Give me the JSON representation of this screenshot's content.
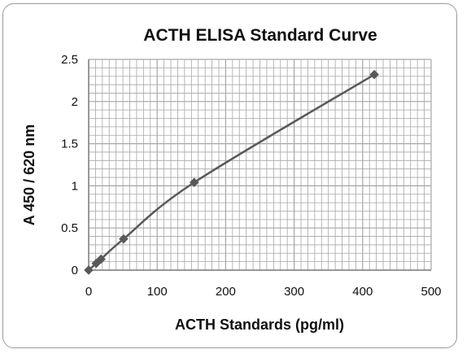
{
  "chart_data": {
    "type": "scatter",
    "title": "ACTH ELISA Standard Curve",
    "xlabel": "ACTH Standards (pg/ml)",
    "ylabel": "A 450 / 620 nm",
    "xlim": [
      0,
      500
    ],
    "ylim": [
      0,
      2.5
    ],
    "x_ticks": [
      "0",
      "100",
      "200",
      "300",
      "400",
      "500"
    ],
    "y_ticks": [
      "0",
      "0.5",
      "1",
      "1.5",
      "2",
      "2.5"
    ],
    "grid": true,
    "legend": "none",
    "line_style": "smoothed line with diamond markers",
    "colors": {
      "series": "#595959",
      "grid": "#a6a6a6",
      "frame": "#9a9a9a"
    },
    "series": [
      {
        "x": [
          0,
          11,
          18,
          51,
          154,
          417
        ],
        "y": [
          0.0,
          0.08,
          0.13,
          0.37,
          1.04,
          2.32
        ]
      }
    ]
  }
}
